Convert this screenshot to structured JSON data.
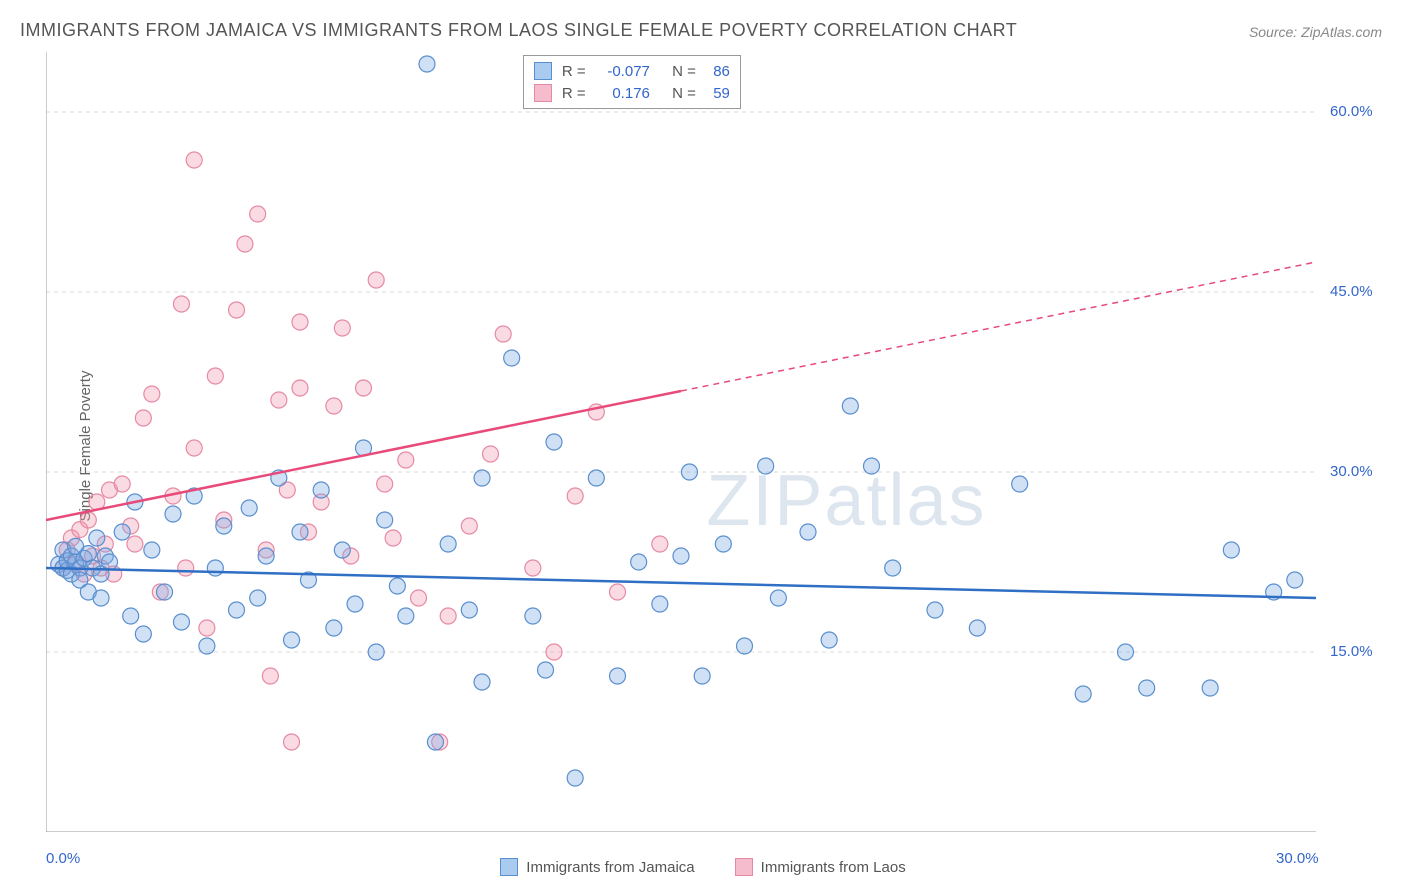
{
  "title": "IMMIGRANTS FROM JAMAICA VS IMMIGRANTS FROM LAOS SINGLE FEMALE POVERTY CORRELATION CHART",
  "source": "Source: ZipAtlas.com",
  "ylabel": "Single Female Poverty",
  "watermark": "ZIPatlas",
  "chart": {
    "type": "scatter",
    "background_color": "#ffffff",
    "grid_color": "#d8d8d8",
    "axis_color": "#999999",
    "label_color": "#3366cc",
    "title_color": "#555555",
    "title_fontsize": 18,
    "label_fontsize": 15,
    "xlim": [
      0,
      30
    ],
    "ylim": [
      0,
      65
    ],
    "x_ticks": [
      0,
      4,
      8,
      12,
      16,
      20,
      24,
      28
    ],
    "y_gridlines": [
      15,
      30,
      45,
      60
    ],
    "x_tick_labels": {
      "0": "0.0%",
      "30": "30.0%"
    },
    "y_tick_labels": {
      "15": "15.0%",
      "30": "30.0%",
      "45": "45.0%",
      "60": "60.0%"
    },
    "marker_radius": 8,
    "marker_stroke_width": 1.2,
    "trend_line_width": 2.5
  },
  "series": {
    "jamaica": {
      "label": "Immigrants from Jamaica",
      "fill_color": "rgba(120, 170, 230, 0.35)",
      "stroke_color": "#5a8fce",
      "swatch_fill": "#a9cbef",
      "swatch_border": "#5a8fce",
      "trend_color": "#2f6fc4",
      "R": "-0.077",
      "N": "86",
      "trend": {
        "x1": 0,
        "y1": 22.0,
        "x2": 30,
        "y2": 19.5,
        "dash_from_x": null
      },
      "points": [
        [
          0.3,
          22.3
        ],
        [
          0.4,
          22.0
        ],
        [
          0.4,
          23.5
        ],
        [
          0.5,
          21.8
        ],
        [
          0.5,
          22.6
        ],
        [
          0.6,
          23.0
        ],
        [
          0.6,
          21.5
        ],
        [
          0.7,
          22.5
        ],
        [
          0.7,
          23.8
        ],
        [
          0.8,
          22.0
        ],
        [
          0.8,
          21.0
        ],
        [
          0.9,
          22.8
        ],
        [
          1.0,
          23.2
        ],
        [
          1.0,
          20.0
        ],
        [
          1.1,
          22.0
        ],
        [
          1.2,
          24.5
        ],
        [
          1.3,
          21.5
        ],
        [
          1.3,
          19.5
        ],
        [
          1.4,
          23.0
        ],
        [
          1.5,
          22.5
        ],
        [
          1.8,
          25.0
        ],
        [
          2.0,
          18.0
        ],
        [
          2.1,
          27.5
        ],
        [
          2.3,
          16.5
        ],
        [
          2.5,
          23.5
        ],
        [
          2.8,
          20.0
        ],
        [
          3.0,
          26.5
        ],
        [
          3.2,
          17.5
        ],
        [
          3.5,
          28.0
        ],
        [
          3.8,
          15.5
        ],
        [
          4.0,
          22.0
        ],
        [
          4.2,
          25.5
        ],
        [
          4.5,
          18.5
        ],
        [
          4.8,
          27.0
        ],
        [
          5.0,
          19.5
        ],
        [
          5.2,
          23.0
        ],
        [
          5.5,
          29.5
        ],
        [
          5.8,
          16.0
        ],
        [
          6.0,
          25.0
        ],
        [
          6.2,
          21.0
        ],
        [
          6.5,
          28.5
        ],
        [
          6.8,
          17.0
        ],
        [
          7.0,
          23.5
        ],
        [
          7.3,
          19.0
        ],
        [
          7.5,
          32.0
        ],
        [
          7.8,
          15.0
        ],
        [
          8.0,
          26.0
        ],
        [
          8.3,
          20.5
        ],
        [
          8.5,
          18.0
        ],
        [
          9.0,
          64.0
        ],
        [
          9.2,
          7.5
        ],
        [
          9.5,
          24.0
        ],
        [
          10.0,
          18.5
        ],
        [
          10.3,
          29.5
        ],
        [
          10.3,
          12.5
        ],
        [
          11.0,
          39.5
        ],
        [
          11.5,
          18.0
        ],
        [
          11.8,
          13.5
        ],
        [
          12.0,
          32.5
        ],
        [
          12.5,
          4.5
        ],
        [
          13.0,
          29.5
        ],
        [
          13.5,
          13.0
        ],
        [
          14.0,
          22.5
        ],
        [
          14.5,
          19.0
        ],
        [
          15.0,
          23.0
        ],
        [
          15.2,
          30.0
        ],
        [
          15.5,
          13.0
        ],
        [
          16.0,
          24.0
        ],
        [
          16.5,
          15.5
        ],
        [
          17.0,
          30.5
        ],
        [
          17.3,
          19.5
        ],
        [
          18.0,
          25.0
        ],
        [
          18.5,
          16.0
        ],
        [
          19.0,
          35.5
        ],
        [
          19.5,
          30.5
        ],
        [
          20.0,
          22.0
        ],
        [
          21.0,
          18.5
        ],
        [
          22.0,
          17.0
        ],
        [
          23.0,
          29.0
        ],
        [
          24.5,
          11.5
        ],
        [
          25.5,
          15.0
        ],
        [
          26.0,
          12.0
        ],
        [
          27.5,
          12.0
        ],
        [
          28.0,
          23.5
        ],
        [
          29.0,
          20.0
        ],
        [
          29.5,
          21.0
        ]
      ]
    },
    "laos": {
      "label": "Immigrants from Laos",
      "fill_color": "rgba(240, 150, 175, 0.35)",
      "stroke_color": "#e68aa3",
      "swatch_fill": "#f5bcce",
      "swatch_border": "#e68aa3",
      "trend_color": "#e84a7a",
      "R": "0.176",
      "N": "59",
      "trend": {
        "x1": 0,
        "y1": 26.0,
        "x2": 30,
        "y2": 47.5,
        "dash_from_x": 15
      },
      "points": [
        [
          0.4,
          22.0
        ],
        [
          0.5,
          23.5
        ],
        [
          0.6,
          24.5
        ],
        [
          0.7,
          22.3
        ],
        [
          0.8,
          25.2
        ],
        [
          0.9,
          21.5
        ],
        [
          1.0,
          26.0
        ],
        [
          1.1,
          23.0
        ],
        [
          1.2,
          27.5
        ],
        [
          1.3,
          22.0
        ],
        [
          1.4,
          24.0
        ],
        [
          1.5,
          28.5
        ],
        [
          1.6,
          21.5
        ],
        [
          1.8,
          29.0
        ],
        [
          2.0,
          25.5
        ],
        [
          2.1,
          24.0
        ],
        [
          2.3,
          34.5
        ],
        [
          2.5,
          36.5
        ],
        [
          2.7,
          20.0
        ],
        [
          3.0,
          28.0
        ],
        [
          3.2,
          44.0
        ],
        [
          3.3,
          22.0
        ],
        [
          3.5,
          32.0
        ],
        [
          3.5,
          56.0
        ],
        [
          3.8,
          17.0
        ],
        [
          4.0,
          38.0
        ],
        [
          4.2,
          26.0
        ],
        [
          4.5,
          43.5
        ],
        [
          4.7,
          49.0
        ],
        [
          5.0,
          51.5
        ],
        [
          5.2,
          23.5
        ],
        [
          5.3,
          13.0
        ],
        [
          5.5,
          36.0
        ],
        [
          5.7,
          28.5
        ],
        [
          5.8,
          7.5
        ],
        [
          6.0,
          42.5
        ],
        [
          6.0,
          37.0
        ],
        [
          6.2,
          25.0
        ],
        [
          6.5,
          27.5
        ],
        [
          6.8,
          35.5
        ],
        [
          7.0,
          42.0
        ],
        [
          7.2,
          23.0
        ],
        [
          7.5,
          37.0
        ],
        [
          7.8,
          46.0
        ],
        [
          8.0,
          29.0
        ],
        [
          8.2,
          24.5
        ],
        [
          8.5,
          31.0
        ],
        [
          8.8,
          19.5
        ],
        [
          9.3,
          7.5
        ],
        [
          9.5,
          18.0
        ],
        [
          10.0,
          25.5
        ],
        [
          10.5,
          31.5
        ],
        [
          10.8,
          41.5
        ],
        [
          11.5,
          22.0
        ],
        [
          12.0,
          15.0
        ],
        [
          12.5,
          28.0
        ],
        [
          13.0,
          35.0
        ],
        [
          13.5,
          20.0
        ],
        [
          14.5,
          24.0
        ]
      ]
    }
  },
  "stats_legend": {
    "top_offset": 3,
    "center_offset_pct": 47
  }
}
